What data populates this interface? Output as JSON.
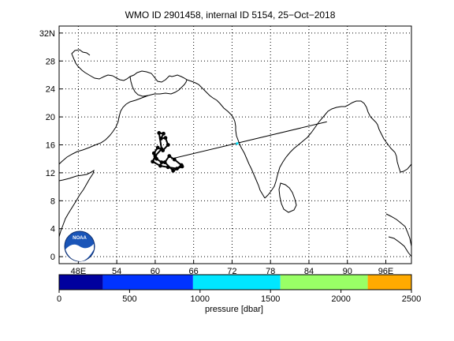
{
  "title": "WMO ID 2901458, internal ID 5154, 25−Oct−2018",
  "map": {
    "lon_range": [
      45,
      100
    ],
    "lat_range": [
      -1,
      33
    ],
    "lon_ticks": [
      {
        "value": 48,
        "label": "48E"
      },
      {
        "value": 54,
        "label": "54"
      },
      {
        "value": 60,
        "label": "60"
      },
      {
        "value": 66,
        "label": "66"
      },
      {
        "value": 72,
        "label": "72"
      },
      {
        "value": 78,
        "label": "78"
      },
      {
        "value": 84,
        "label": "84"
      },
      {
        "value": 90,
        "label": "90"
      },
      {
        "value": 96,
        "label": "96E"
      }
    ],
    "lat_ticks": [
      {
        "value": 0,
        "label": "0"
      },
      {
        "value": 4,
        "label": "4"
      },
      {
        "value": 8,
        "label": "8"
      },
      {
        "value": 12,
        "label": "12"
      },
      {
        "value": 16,
        "label": "16"
      },
      {
        "value": 20,
        "label": "20"
      },
      {
        "value": 24,
        "label": "24"
      },
      {
        "value": 28,
        "label": "28"
      },
      {
        "value": 32,
        "label": "32N"
      }
    ],
    "grid": true,
    "float_track": [
      [
        61.0,
        13.5
      ],
      [
        60.2,
        14.0
      ],
      [
        59.8,
        14.8
      ],
      [
        60.4,
        15.6
      ],
      [
        61.2,
        15.2
      ],
      [
        62.0,
        16.0
      ],
      [
        61.6,
        17.0
      ],
      [
        60.9,
        16.9
      ],
      [
        61.3,
        17.6
      ],
      [
        60.6,
        17.7
      ],
      [
        61.0,
        15.4
      ],
      [
        60.0,
        14.4
      ],
      [
        59.6,
        13.6
      ],
      [
        60.8,
        13.0
      ],
      [
        62.0,
        12.8
      ],
      [
        63.4,
        12.6
      ],
      [
        64.1,
        13.1
      ],
      [
        63.0,
        13.9
      ],
      [
        62.2,
        14.4
      ],
      [
        61.5,
        13.5
      ],
      [
        62.8,
        12.3
      ],
      [
        64.2,
        12.9
      ]
    ],
    "profile_line": {
      "from": [
        62.5,
        14.0
      ],
      "to": [
        86.8,
        19.3
      ],
      "marker": [
        72.8,
        16.2
      ],
      "marker_color": "#00e6ff"
    }
  },
  "logo": {
    "text": "NOAA"
  },
  "colorbar": {
    "min": 0,
    "max": 2500,
    "label": "pressure [dbar]",
    "tick_labels": [
      "0",
      "500",
      "1000",
      "1500",
      "2000",
      "2500"
    ],
    "tick_values": [
      0,
      500,
      1000,
      1500,
      2000,
      2500
    ],
    "segments": [
      {
        "from": 0,
        "to": 310,
        "color": "#00009e"
      },
      {
        "from": 310,
        "to": 950,
        "color": "#0033ff"
      },
      {
        "from": 950,
        "to": 1570,
        "color": "#00e6ff"
      },
      {
        "from": 1570,
        "to": 2190,
        "color": "#99ff66"
      },
      {
        "from": 2190,
        "to": 2500,
        "color": "#ffaa00"
      }
    ]
  }
}
